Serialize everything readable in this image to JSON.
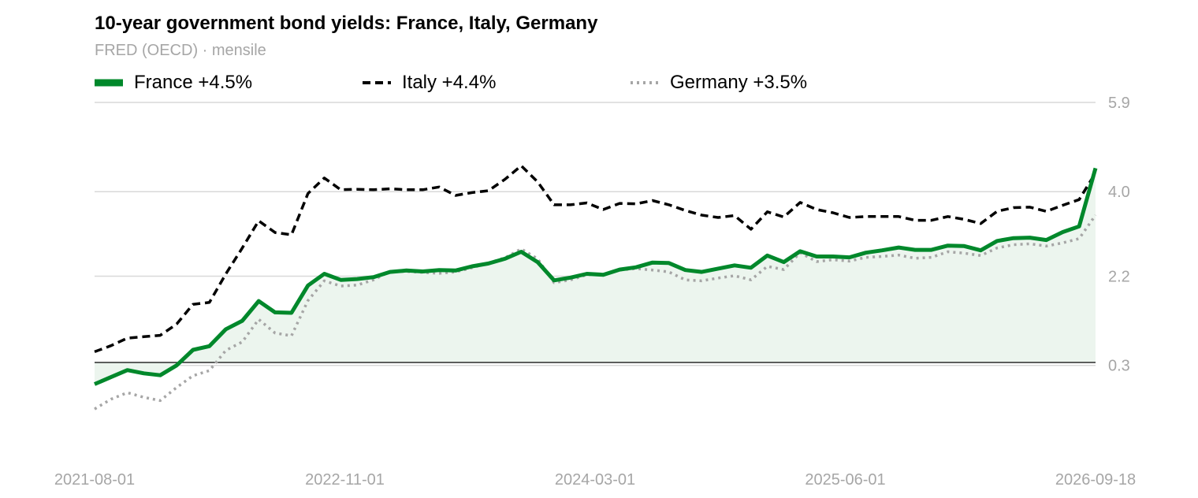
{
  "header": {
    "title": "10-year government bond yields: France, Italy, Germany",
    "subtitle": "FRED (OECD) · mensile"
  },
  "colors": {
    "france": "#00882b",
    "italy": "#000000",
    "germany": "#a6a6a6",
    "area": "#ecf5ee",
    "grid": "#d9d9d9",
    "tick": "#a6a6a6"
  },
  "chart_data": {
    "type": "line",
    "title": "10-year government bond yields: France, Italy, Germany",
    "subtitle": "FRED (OECD) · mensile",
    "y_ticks": [
      "0.3",
      "2.2",
      "4.0",
      "5.9"
    ],
    "x_ticks": [
      "2021-08-01",
      "2022-11-01",
      "2024-03-01",
      "2025-06-01",
      "2026-09-18"
    ],
    "ylim": [
      -1.4,
      5.9
    ],
    "grid": true,
    "legend_position": "top",
    "series": [
      {
        "name": "France +4.5%",
        "style": "solid",
        "fill": true,
        "values": [
          -0.1,
          0.05,
          0.2,
          0.13,
          0.09,
          0.3,
          0.63,
          0.71,
          1.07,
          1.25,
          1.67,
          1.43,
          1.42,
          2.0,
          2.25,
          2.12,
          2.14,
          2.18,
          2.29,
          2.32,
          2.3,
          2.33,
          2.32,
          2.41,
          2.47,
          2.57,
          2.72,
          2.5,
          2.11,
          2.17,
          2.25,
          2.23,
          2.34,
          2.39,
          2.49,
          2.48,
          2.33,
          2.29,
          2.36,
          2.43,
          2.38,
          2.64,
          2.5,
          2.73,
          2.62,
          2.62,
          2.6,
          2.7,
          2.75,
          2.81,
          2.76,
          2.76,
          2.85,
          2.84,
          2.75,
          2.95,
          3.01,
          3.02,
          2.97,
          3.14,
          3.26,
          4.5
        ]
      },
      {
        "name": "Italy +4.4%",
        "style": "dashed",
        "values": [
          0.59,
          0.72,
          0.88,
          0.91,
          0.94,
          1.18,
          1.6,
          1.64,
          2.25,
          2.8,
          3.38,
          3.13,
          3.08,
          3.96,
          4.29,
          4.04,
          4.05,
          4.04,
          4.06,
          4.04,
          4.04,
          4.1,
          3.92,
          3.98,
          4.02,
          4.26,
          4.55,
          4.21,
          3.72,
          3.72,
          3.76,
          3.62,
          3.75,
          3.74,
          3.81,
          3.72,
          3.6,
          3.5,
          3.45,
          3.49,
          3.2,
          3.57,
          3.46,
          3.77,
          3.62,
          3.55,
          3.45,
          3.47,
          3.47,
          3.47,
          3.39,
          3.39,
          3.47,
          3.41,
          3.32,
          3.58,
          3.66,
          3.67,
          3.58,
          3.71,
          3.83,
          4.4
        ]
      },
      {
        "name": "Germany +3.5%",
        "style": "dotted",
        "values": [
          -0.63,
          -0.42,
          -0.28,
          -0.38,
          -0.45,
          -0.17,
          0.08,
          0.19,
          0.62,
          0.8,
          1.28,
          0.99,
          0.93,
          1.68,
          2.1,
          1.99,
          2.01,
          2.12,
          2.3,
          2.3,
          2.28,
          2.26,
          2.29,
          2.38,
          2.48,
          2.59,
          2.78,
          2.57,
          2.06,
          2.12,
          2.23,
          2.24,
          2.33,
          2.36,
          2.33,
          2.29,
          2.12,
          2.1,
          2.16,
          2.21,
          2.12,
          2.41,
          2.34,
          2.7,
          2.51,
          2.55,
          2.52,
          2.6,
          2.62,
          2.65,
          2.58,
          2.6,
          2.72,
          2.69,
          2.64,
          2.8,
          2.87,
          2.89,
          2.84,
          2.91,
          3.0,
          3.5
        ]
      }
    ]
  }
}
